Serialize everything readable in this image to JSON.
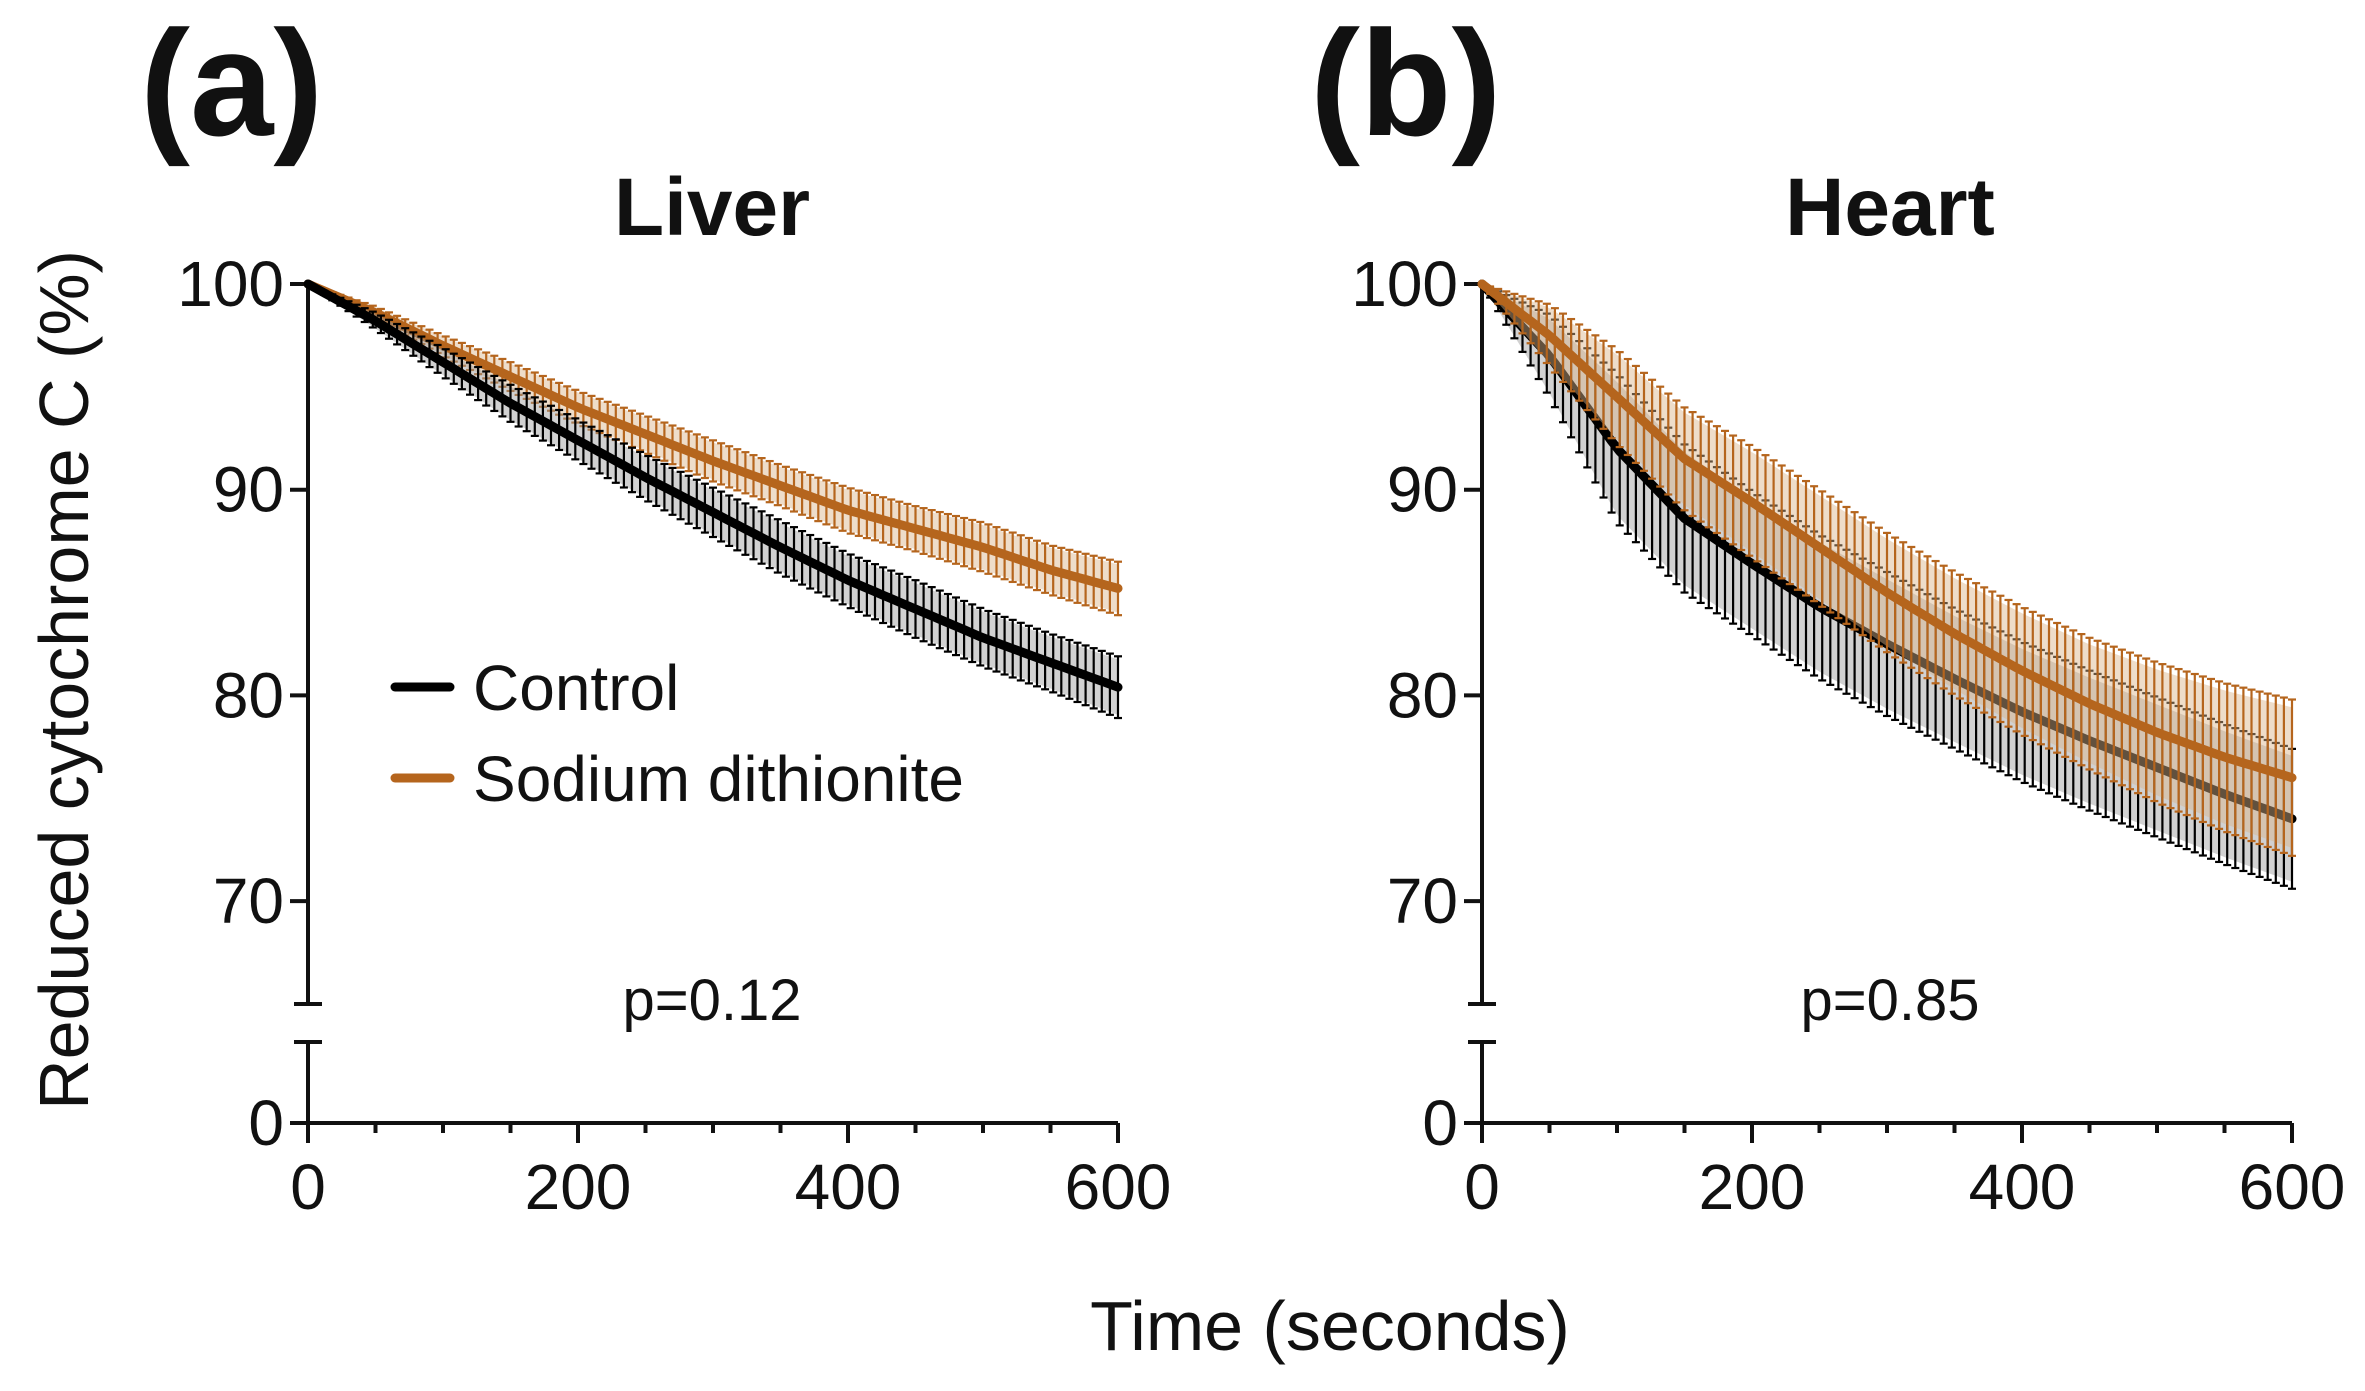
{
  "figure": {
    "ylabel": "Reduced cytochrome C (%)",
    "xlabel": "Time (seconds)"
  },
  "legend": {
    "items": [
      {
        "label": "Control",
        "color": "#000000"
      },
      {
        "label": "Sodium dithionite",
        "color": "#b5651d"
      }
    ]
  },
  "chart_data": [
    {
      "panel": "(a)",
      "type": "line",
      "title": "Liver",
      "annotation": "p=0.12",
      "xlabel": "Time (seconds)",
      "ylabel": "Reduced cytochrome C (%)",
      "xlim": [
        0,
        600
      ],
      "ylim": [
        0,
        100
      ],
      "y_axis_break": [
        0,
        65
      ],
      "xticks": [
        0,
        200,
        400,
        600
      ],
      "yticks": [
        0,
        70,
        80,
        90,
        100
      ],
      "grid": false,
      "legend_position": "center-left",
      "series": [
        {
          "name": "Control",
          "color": "#000000",
          "x": [
            0,
            50,
            100,
            150,
            200,
            250,
            300,
            350,
            400,
            450,
            500,
            550,
            600
          ],
          "values": [
            100,
            98.2,
            96.2,
            94.2,
            92.4,
            90.6,
            88.9,
            87.2,
            85.6,
            84.2,
            82.8,
            81.6,
            80.4
          ],
          "error": [
            0,
            0.4,
            0.7,
            0.9,
            1.0,
            1.1,
            1.2,
            1.3,
            1.3,
            1.4,
            1.4,
            1.4,
            1.5
          ]
        },
        {
          "name": "Sodium dithionite",
          "color": "#b5651d",
          "x": [
            0,
            50,
            100,
            150,
            200,
            250,
            300,
            350,
            400,
            450,
            500,
            550,
            600
          ],
          "values": [
            100,
            98.6,
            97.0,
            95.5,
            94.0,
            92.7,
            91.4,
            90.2,
            89.0,
            88.1,
            87.2,
            86.1,
            85.2
          ],
          "error": [
            0,
            0.3,
            0.5,
            0.7,
            0.8,
            0.9,
            1.0,
            1.0,
            1.1,
            1.1,
            1.2,
            1.2,
            1.3
          ]
        }
      ]
    },
    {
      "panel": "(b)",
      "type": "line",
      "title": "Heart",
      "annotation": "p=0.85",
      "xlabel": "Time (seconds)",
      "ylabel": "Reduced cytochrome C (%)",
      "xlim": [
        0,
        600
      ],
      "ylim": [
        0,
        100
      ],
      "y_axis_break": [
        0,
        65
      ],
      "xticks": [
        0,
        200,
        400,
        600
      ],
      "yticks": [
        0,
        70,
        80,
        90,
        100
      ],
      "grid": false,
      "series": [
        {
          "name": "Control",
          "color": "#000000",
          "x": [
            0,
            50,
            100,
            150,
            200,
            250,
            300,
            350,
            400,
            450,
            500,
            550,
            600
          ],
          "values": [
            100,
            96.5,
            92.0,
            88.6,
            86.4,
            84.3,
            82.5,
            80.8,
            79.2,
            77.8,
            76.5,
            75.2,
            74.0
          ],
          "error": [
            0,
            2.0,
            3.6,
            3.6,
            3.5,
            3.5,
            3.5,
            3.4,
            3.4,
            3.4,
            3.4,
            3.4,
            3.4
          ]
        },
        {
          "name": "Sodium dithionite",
          "color": "#b5651d",
          "x": [
            0,
            50,
            100,
            150,
            200,
            250,
            300,
            350,
            400,
            450,
            500,
            550,
            600
          ],
          "values": [
            100,
            97.5,
            94.5,
            91.5,
            89.4,
            87.2,
            85.0,
            83.0,
            81.2,
            79.6,
            78.2,
            77.0,
            76.0
          ],
          "error": [
            0,
            1.5,
            2.3,
            2.5,
            2.7,
            2.8,
            2.9,
            3.0,
            3.1,
            3.2,
            3.4,
            3.6,
            3.8
          ]
        }
      ]
    }
  ]
}
